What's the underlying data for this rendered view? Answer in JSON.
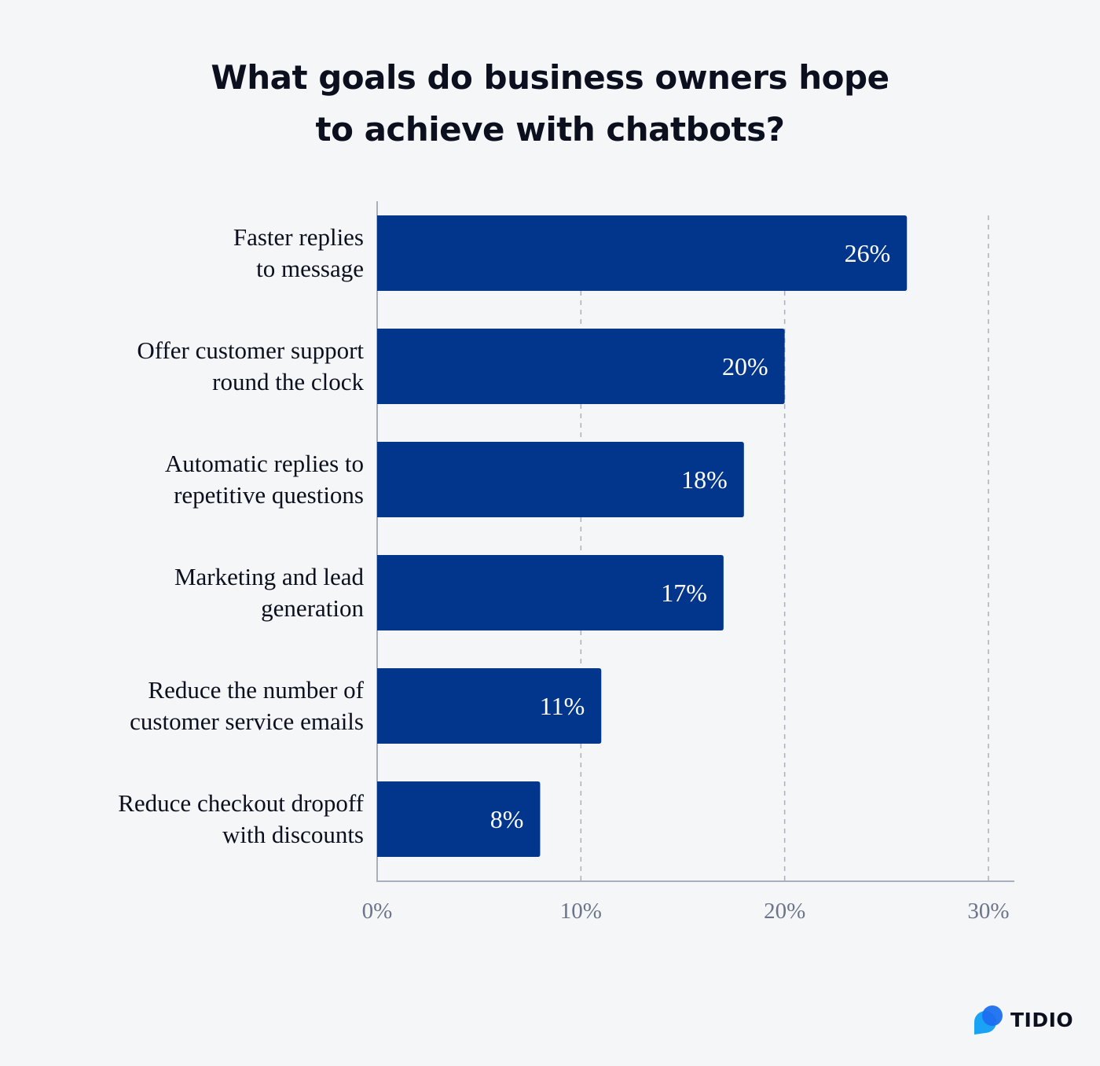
{
  "chart_data": {
    "type": "bar",
    "orientation": "horizontal",
    "title_lines": [
      "What goals do business owners hope",
      "to achieve with chatbots?"
    ],
    "categories": [
      [
        "Faster replies",
        "to message"
      ],
      [
        "Offer customer support",
        "round the clock"
      ],
      [
        "Automatic replies to",
        "repetitive questions"
      ],
      [
        "Marketing and lead",
        "generation"
      ],
      [
        "Reduce the number of",
        "customer service emails"
      ],
      [
        "Reduce checkout dropoff",
        "with discounts"
      ]
    ],
    "values": [
      26,
      20,
      18,
      17,
      11,
      8
    ],
    "data_labels": [
      "26%",
      "20%",
      "18%",
      "17%",
      "11%",
      "8%"
    ],
    "xlim": [
      0,
      30
    ],
    "xticks": [
      0,
      10,
      20,
      30
    ],
    "xtick_labels": [
      "0%",
      "10%",
      "20%",
      "30%"
    ],
    "grid": "vertical dashed",
    "bar_color": "#01368c",
    "xlabel": "",
    "ylabel": ""
  },
  "brand": {
    "name": "TIDIO",
    "colors": [
      "#1e6ff0",
      "#1aa3f5"
    ]
  }
}
